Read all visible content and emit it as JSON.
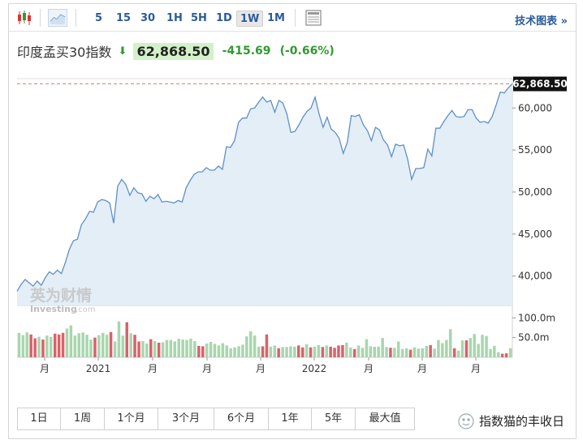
{
  "toolbar": {
    "periods": [
      "5",
      "15",
      "30",
      "1H",
      "5H",
      "1D",
      "1W",
      "1M"
    ],
    "active_period": "1W",
    "right_link": "技术图表 »"
  },
  "header": {
    "name": "印度孟买30指数",
    "arrow": "⬇",
    "price": "62,868.50",
    "change": "-415.69",
    "change_pct": "(-0.66%)"
  },
  "chart_data": {
    "type": "area",
    "title": "印度孟买30指数",
    "ylim": [
      36500,
      63500
    ],
    "y_ticks": [
      40000,
      45000,
      50000,
      55000,
      60000
    ],
    "y_tick_labels": [
      "40,000",
      "45,000",
      "50,000",
      "55,000",
      "60,000"
    ],
    "x_tick_labels": [
      "月",
      "2021",
      "月",
      "月",
      "月",
      "2022",
      "月",
      "月",
      "月"
    ],
    "last_price_label": "62,868.50",
    "last_price": 62868.5,
    "series": [
      {
        "values": [
          38200,
          39000,
          39600,
          39200,
          38800,
          39400,
          38900,
          39800,
          40500,
          40200,
          40700,
          40300,
          41600,
          43200,
          44200,
          44400,
          46100,
          46800,
          47700,
          47600,
          48800,
          49100,
          49000,
          48700,
          46300,
          50700,
          51500,
          50900,
          49600,
          50500,
          49900,
          49800,
          48900,
          49500,
          49200,
          49700,
          48800,
          48900,
          48800,
          48700,
          49000,
          48800,
          50500,
          51400,
          52100,
          52400,
          52400,
          52900,
          52600,
          52600,
          53100,
          52700,
          55400,
          55300,
          56100,
          58300,
          58800,
          58800,
          59900,
          60000,
          60700,
          61300,
          60700,
          60900,
          59500,
          60900,
          60600,
          59300,
          57100,
          57200,
          58000,
          58900,
          59600,
          60000,
          61300,
          59300,
          57700,
          58900,
          57500,
          57100,
          56400,
          54600,
          55900,
          59100,
          59000,
          59200,
          58000,
          57300,
          56100,
          57700,
          57400,
          56200,
          55600,
          54200,
          55700,
          55500,
          55600,
          53900,
          51500,
          52800,
          52800,
          52900,
          55100,
          54300,
          57600,
          57600,
          58400,
          59100,
          59700,
          59000,
          58900,
          59000,
          59800,
          59800,
          58800,
          58300,
          58400,
          58200,
          59000,
          60400,
          61900,
          61800,
          62400,
          62868.5
        ]
      }
    ],
    "volume": {
      "ticks": [
        "100.0m",
        "50.0m"
      ],
      "tick_values": [
        100,
        50
      ],
      "values": [
        62,
        56,
        63,
        58,
        48,
        52,
        45,
        55,
        52,
        60,
        58,
        62,
        73,
        81,
        55,
        61,
        63,
        57,
        45,
        50,
        56,
        62,
        57,
        64,
        40,
        91,
        55,
        89,
        61,
        57,
        40,
        41,
        35,
        46,
        41,
        37,
        38,
        44,
        44,
        40,
        47,
        45,
        44,
        47,
        41,
        29,
        28,
        35,
        39,
        34,
        30,
        36,
        30,
        23,
        25,
        28,
        32,
        53,
        66,
        55,
        27,
        28,
        58,
        27,
        30,
        23,
        26,
        26,
        28,
        27,
        30,
        25,
        33,
        25,
        27,
        31,
        26,
        30,
        27,
        24,
        30,
        31,
        37,
        25,
        21,
        30,
        24,
        46,
        28,
        27,
        27,
        49,
        26,
        24,
        24,
        40,
        21,
        23,
        19,
        25,
        22,
        23,
        29,
        31,
        22,
        44,
        36,
        44,
        71,
        23,
        17,
        43,
        43,
        49,
        59,
        34,
        57,
        54,
        21,
        29,
        13,
        9,
        10,
        23
      ],
      "colors": [
        "g",
        "g",
        "g",
        "r",
        "r",
        "g",
        "r",
        "g",
        "g",
        "r",
        "r",
        "r",
        "g",
        "g",
        "g",
        "g",
        "g",
        "g",
        "g",
        "r",
        "g",
        "g",
        "g",
        "r",
        "g",
        "g",
        "g",
        "r",
        "g",
        "r",
        "r",
        "g",
        "g",
        "r",
        "g",
        "r",
        "g",
        "g",
        "g",
        "g",
        "g",
        "g",
        "g",
        "g",
        "g",
        "r",
        "r",
        "g",
        "g",
        "g",
        "g",
        "g",
        "g",
        "g",
        "g",
        "g",
        "g",
        "g",
        "g",
        "g",
        "g",
        "r",
        "r",
        "g",
        "g",
        "r",
        "g",
        "g",
        "g",
        "g",
        "r",
        "r",
        "g",
        "r",
        "g",
        "g",
        "r",
        "g",
        "r",
        "r",
        "r",
        "r",
        "g",
        "g",
        "r",
        "g",
        "g",
        "g",
        "g",
        "g",
        "g",
        "g",
        "g",
        "r",
        "g",
        "g",
        "g",
        "g",
        "r",
        "g",
        "g",
        "g",
        "g",
        "r",
        "g",
        "g",
        "g",
        "g",
        "g",
        "r",
        "g",
        "g",
        "r",
        "g",
        "g",
        "g",
        "g",
        "g",
        "g",
        "g",
        "g",
        "r",
        "r",
        "g"
      ]
    }
  },
  "colors": {
    "line": "#5f8fc7",
    "fill": "#e4eef7",
    "vol_green": "#a8d6ad",
    "vol_red": "#d9626a",
    "price_line": "#e07b7b",
    "price_label_bg": "#111111"
  },
  "range_buttons": [
    "1日",
    "1周",
    "1个月",
    "3个月",
    "6个月",
    "1年",
    "5年",
    "最大值"
  ],
  "logo": {
    "cn": "英为财情",
    "en": "Investing",
    "suffix": ".com"
  },
  "watermark": "指数猫的丰收日"
}
